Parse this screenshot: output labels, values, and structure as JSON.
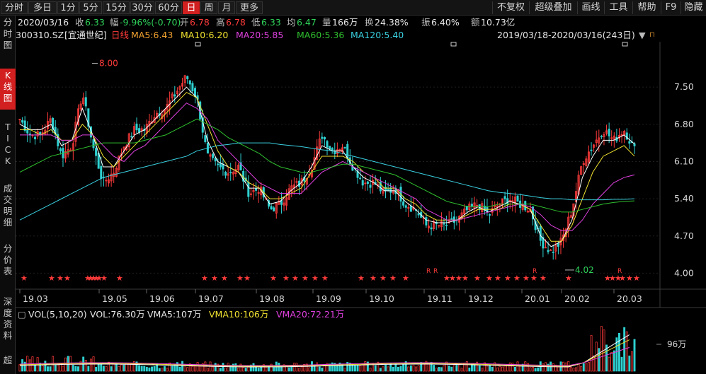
{
  "periods": [
    {
      "label": "分时",
      "active": false
    },
    {
      "label": "多日",
      "active": false
    },
    {
      "label": "1分",
      "active": false
    },
    {
      "label": "5分",
      "active": false
    },
    {
      "label": "15分",
      "active": false
    },
    {
      "label": "30分",
      "active": false
    },
    {
      "label": "60分",
      "active": false
    },
    {
      "label": "日",
      "active": true
    },
    {
      "label": "周",
      "active": false
    },
    {
      "label": "月",
      "active": false
    },
    {
      "label": "更多",
      "active": false
    }
  ],
  "right_menu": [
    "不复权",
    "超级叠加",
    "画线",
    "工具",
    "帮助",
    "F9",
    "隐藏"
  ],
  "sidebar": [
    {
      "label": "分时图",
      "active": false
    },
    {
      "label": "K线图",
      "active": true
    },
    {
      "label": "TICK",
      "active": false
    },
    {
      "label": "成交明细",
      "active": false
    },
    {
      "label": "分价表",
      "active": false
    },
    {
      "label": "深度资料",
      "active": false
    },
    {
      "label": "超",
      "active": false
    }
  ],
  "quote": {
    "date": "2020/03/16",
    "close_label": "收",
    "close": "6.33",
    "change_label": "幅",
    "change": "-9.96%(-0.70)",
    "open_label": "开",
    "open": "6.78",
    "high_label": "高",
    "high": "6.78",
    "low_label": "低",
    "low": "6.33",
    "avg_label": "均",
    "avg": "6.47",
    "volume_label": "量",
    "volume": "166万",
    "turnover_label": "换",
    "turnover": "24.38%",
    "amplitude_label": "振",
    "amplitude": "6.40%",
    "amount_label": "额",
    "amount": "10.73亿"
  },
  "code": "300310.SZ",
  "name": "[宜通世纪]",
  "kline_label": "日线",
  "ma": [
    {
      "label": "MA5:6.43",
      "color": "#ffffff"
    },
    {
      "label": "MA10:6.20",
      "color": "#f0e130"
    },
    {
      "label": "MA20:5.85",
      "color": "#e040e0"
    },
    {
      "label": "MA60:5.36",
      "color": "#2fbf2f"
    },
    {
      "label": "MA120:5.40",
      "color": "#3ad0e0"
    }
  ],
  "range": "2019/03/18-2020/03/16(243日)",
  "price_axis": [
    "7.50",
    "6.80",
    "6.10",
    "5.40",
    "4.70",
    "4.00"
  ],
  "annot_high": "8.00",
  "annot_low": "4.02",
  "time_axis": [
    "19.03",
    "19.05",
    "19.06",
    "19.07",
    "19.08",
    "19.09",
    "19.10",
    "19.11",
    "19.12",
    "20.01",
    "20.02",
    "20.03"
  ],
  "vol": {
    "label": "VOL(5,10,20)",
    "vol": "VOL:76.30万",
    "vma5": "VMA5:107万",
    "vma10": "VMA10:106万",
    "vma20": "VMA20:72.21万",
    "axis": "96万"
  },
  "colors": {
    "up": "#ff3b3b",
    "down": "#2fd0d0",
    "active": "#d21f1f"
  },
  "chart_data": {
    "type": "candlestick",
    "period": "daily",
    "symbol": "300310.SZ",
    "range": [
      "2019/03/18",
      "2020/03/16"
    ],
    "ylim": [
      3.7,
      8.3
    ],
    "y_ticks": [
      7.5,
      6.8,
      6.1,
      5.4,
      4.7,
      4.0
    ],
    "x_ticks": [
      "19.03",
      "19.05",
      "19.06",
      "19.07",
      "19.08",
      "19.09",
      "19.10",
      "19.11",
      "19.12",
      "20.01",
      "20.02",
      "20.03"
    ],
    "close_path": [
      6.9,
      6.6,
      6.6,
      6.9,
      6.2,
      6.4,
      7.4,
      6.4,
      5.7,
      5.9,
      6.4,
      6.7,
      6.7,
      7.0,
      7.1,
      7.4,
      7.7,
      7.3,
      6.2,
      6.0,
      5.9,
      6.0,
      5.5,
      5.6,
      5.2,
      5.3,
      5.6,
      5.7,
      6.0,
      6.6,
      6.3,
      6.4,
      6.0,
      5.7,
      5.7,
      5.5,
      5.6,
      5.3,
      5.2,
      4.9,
      4.9,
      4.9,
      5.0,
      5.2,
      5.3,
      5.1,
      5.3,
      5.4,
      5.3,
      5.2,
      4.6,
      4.4,
      4.6,
      5.2,
      6.1,
      6.4,
      6.7,
      6.5,
      6.7,
      6.33
    ],
    "ma_series": [
      {
        "name": "MA5",
        "color": "#ffffff",
        "values": [
          6.8,
          6.7,
          6.7,
          6.8,
          6.4,
          6.5,
          7.1,
          6.6,
          6.0,
          6.0,
          6.3,
          6.6,
          6.7,
          6.9,
          7.1,
          7.3,
          7.5,
          7.3,
          6.5,
          6.1,
          6.0,
          5.9,
          5.6,
          5.6,
          5.3,
          5.35,
          5.55,
          5.7,
          6.0,
          6.4,
          6.3,
          6.3,
          6.0,
          5.8,
          5.7,
          5.55,
          5.55,
          5.35,
          5.2,
          5.0,
          4.95,
          4.95,
          5.0,
          5.15,
          5.25,
          5.15,
          5.25,
          5.35,
          5.3,
          5.2,
          4.7,
          4.5,
          4.6,
          5.0,
          5.8,
          6.2,
          6.5,
          6.5,
          6.6,
          6.43
        ]
      },
      {
        "name": "MA10",
        "color": "#f0e130",
        "values": [
          6.7,
          6.7,
          6.6,
          6.7,
          6.5,
          6.5,
          6.8,
          6.6,
          6.2,
          6.0,
          6.2,
          6.4,
          6.6,
          6.8,
          7.0,
          7.2,
          7.4,
          7.3,
          6.8,
          6.3,
          6.0,
          5.9,
          5.7,
          5.6,
          5.4,
          5.4,
          5.5,
          5.6,
          5.9,
          6.2,
          6.2,
          6.2,
          6.1,
          5.9,
          5.8,
          5.6,
          5.6,
          5.4,
          5.3,
          5.1,
          5.0,
          5.0,
          5.0,
          5.1,
          5.2,
          5.2,
          5.2,
          5.3,
          5.3,
          5.2,
          4.9,
          4.6,
          4.6,
          4.9,
          5.4,
          5.9,
          6.2,
          6.3,
          6.4,
          6.2
        ]
      },
      {
        "name": "MA20",
        "color": "#e040e0",
        "values": [
          6.6,
          6.6,
          6.6,
          6.6,
          6.5,
          6.5,
          6.6,
          6.6,
          6.4,
          6.2,
          6.1,
          6.3,
          6.4,
          6.6,
          6.8,
          7.0,
          7.2,
          7.1,
          6.9,
          6.5,
          6.3,
          6.1,
          5.9,
          5.7,
          5.6,
          5.5,
          5.5,
          5.5,
          5.7,
          5.9,
          6.0,
          6.1,
          6.0,
          5.9,
          5.8,
          5.7,
          5.6,
          5.5,
          5.4,
          5.2,
          5.1,
          5.0,
          5.0,
          5.05,
          5.1,
          5.15,
          5.2,
          5.25,
          5.3,
          5.25,
          5.1,
          4.9,
          4.8,
          4.8,
          5.0,
          5.3,
          5.5,
          5.7,
          5.8,
          5.85
        ]
      },
      {
        "name": "MA60",
        "color": "#2fbf2f",
        "values": [
          5.9,
          6.0,
          6.1,
          6.2,
          6.25,
          6.3,
          6.35,
          6.4,
          6.45,
          6.45,
          6.45,
          6.45,
          6.5,
          6.55,
          6.6,
          6.7,
          6.8,
          6.9,
          6.8,
          6.7,
          6.55,
          6.45,
          6.35,
          6.25,
          6.1,
          6.0,
          5.95,
          5.9,
          5.9,
          5.95,
          6.0,
          6.05,
          6.05,
          6.0,
          5.95,
          5.9,
          5.85,
          5.75,
          5.65,
          5.55,
          5.45,
          5.35,
          5.3,
          5.25,
          5.25,
          5.25,
          5.3,
          5.3,
          5.3,
          5.3,
          5.25,
          5.2,
          5.15,
          5.15,
          5.2,
          5.25,
          5.3,
          5.33,
          5.35,
          5.36
        ]
      },
      {
        "name": "MA120",
        "color": "#3ad0e0",
        "values": [
          5.0,
          5.1,
          5.2,
          5.3,
          5.4,
          5.5,
          5.6,
          5.7,
          5.8,
          5.85,
          5.9,
          5.95,
          6.0,
          6.05,
          6.1,
          6.15,
          6.2,
          6.3,
          6.35,
          6.4,
          6.42,
          6.45,
          6.45,
          6.45,
          6.45,
          6.42,
          6.4,
          6.38,
          6.35,
          6.32,
          6.3,
          6.25,
          6.2,
          6.15,
          6.1,
          6.05,
          6.0,
          5.95,
          5.9,
          5.85,
          5.8,
          5.75,
          5.7,
          5.65,
          5.6,
          5.55,
          5.52,
          5.5,
          5.48,
          5.45,
          5.42,
          5.4,
          5.4,
          5.38,
          5.38,
          5.38,
          5.38,
          5.39,
          5.39,
          5.4
        ]
      }
    ],
    "annotations": [
      {
        "text": "8.00",
        "kind": "high"
      },
      {
        "text": "4.02",
        "kind": "low"
      }
    ],
    "volume_axis": [
      "96万"
    ]
  }
}
